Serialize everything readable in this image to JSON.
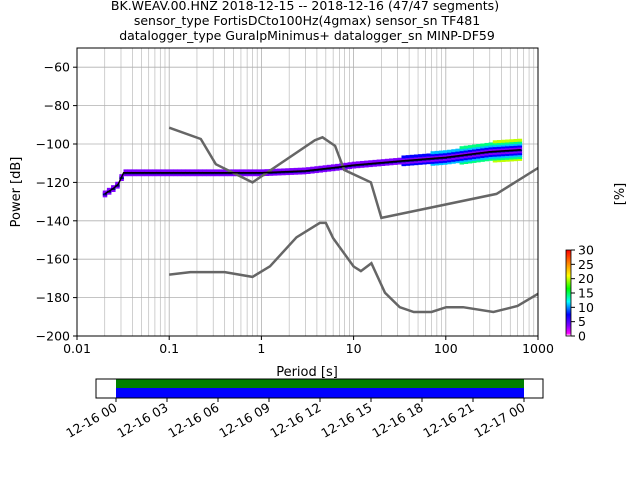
{
  "chart_data": [
    {
      "type": "heatmap",
      "title_lines": [
        "BK.WEAV.00.HNZ   2018-12-15 -- 2018-12-16  (47/47 segments)",
        "sensor_type FortisDCto100Hz(4gmax) sensor_sn TF481",
        "datalogger_type GuralpMinimus+ datalogger_sn MINP-DF59"
      ],
      "xlabel": "Period [s]",
      "ylabel": "Power [dB]",
      "x_scale": "log",
      "xlim": [
        0.01,
        1000
      ],
      "ylim": [
        -200,
        -50
      ],
      "x_ticks": [
        0.01,
        0.1,
        1,
        10,
        100,
        1000
      ],
      "x_tick_labels": [
        "0.01",
        "0.1",
        "1",
        "10",
        "100",
        "1000"
      ],
      "y_ticks": [
        -200,
        -180,
        -160,
        -140,
        -120,
        -100,
        -80,
        -60
      ],
      "y_tick_labels": [
        "−200",
        "−180",
        "−160",
        "−140",
        "−120",
        "−100",
        "−80",
        "−60"
      ],
      "grid": true,
      "noise_models": [
        {
          "x": [
            0.1,
            0.22,
            0.32,
            0.8,
            3.8,
            4.6,
            6.3,
            7.9,
            15.4,
            20,
            354.8,
            1000
          ],
          "y": [
            -91.5,
            -97.4,
            -110.5,
            -120,
            -98,
            -96.5,
            -101,
            -113.5,
            -120,
            -138.5,
            -126,
            -112.5
          ]
        },
        {
          "x": [
            0.1,
            0.17,
            0.4,
            0.8,
            1.24,
            2.4,
            4.3,
            5,
            6,
            10,
            12,
            15.6,
            21.9,
            31.6,
            45,
            70,
            101,
            154,
            328,
            600,
            1000
          ],
          "y": [
            -168,
            -166.7,
            -166.7,
            -169.2,
            -163.7,
            -148.6,
            -141.1,
            -141.1,
            -149,
            -163.8,
            -166.2,
            -162.1,
            -177.5,
            -185,
            -187.5,
            -187.5,
            -185,
            -185,
            -187.5,
            -184.4,
            -178
          ]
        }
      ],
      "psd_mean": {
        "x": [
          0.02,
          0.025,
          0.028,
          0.032,
          0.1,
          1,
          3,
          7,
          10,
          30,
          100,
          300,
          650
        ],
        "y": [
          -126,
          -123,
          -121,
          -115,
          -115,
          -115,
          -114,
          -112,
          -111,
          -109,
          -107,
          -104,
          -103
        ]
      },
      "colorbar": {
        "label": "[%]",
        "range": [
          0,
          30
        ],
        "ticks": [
          0,
          5,
          10,
          15,
          20,
          25,
          30
        ],
        "tick_labels": [
          "0",
          "5",
          "10",
          "15",
          "20",
          "25",
          "30"
        ]
      }
    },
    {
      "type": "bar",
      "description_axis": "time coverage",
      "x_tick_labels": [
        "12-16 00",
        "12-16 03",
        "12-16 06",
        "12-16 09",
        "12-16 12",
        "12-16 15",
        "12-16 18",
        "12-16 21",
        "12-17 00"
      ],
      "data_coverage": [
        [
          "12-16 00",
          "12-17 00"
        ]
      ],
      "colors": {
        "coverage_top": "#008000",
        "coverage_bottom": "#0000ff"
      }
    }
  ]
}
